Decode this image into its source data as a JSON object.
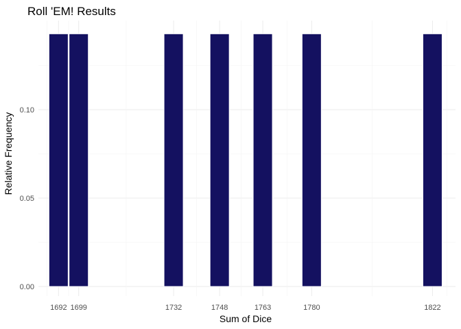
{
  "chart_data": {
    "type": "bar",
    "title": "Roll 'EM! Results",
    "xlabel": "Sum of Dice",
    "ylabel": "Relative Frequency",
    "x": [
      1692,
      1699,
      1732,
      1748,
      1763,
      1780,
      1822
    ],
    "values": [
      0.1429,
      0.1429,
      0.1429,
      0.1429,
      0.1429,
      0.1429,
      0.1429
    ],
    "x_tick_labels": [
      "1692",
      "1699",
      "1732",
      "1748",
      "1763",
      "1780",
      "1822"
    ],
    "y_ticks": [
      0.0,
      0.05,
      0.1
    ],
    "y_tick_labels": [
      "0.00",
      "0.05",
      "0.10"
    ],
    "ylim": [
      0,
      0.15
    ],
    "xlim": [
      1685,
      1830
    ],
    "grid": true,
    "bar_color": "#141160",
    "legend": "none"
  }
}
